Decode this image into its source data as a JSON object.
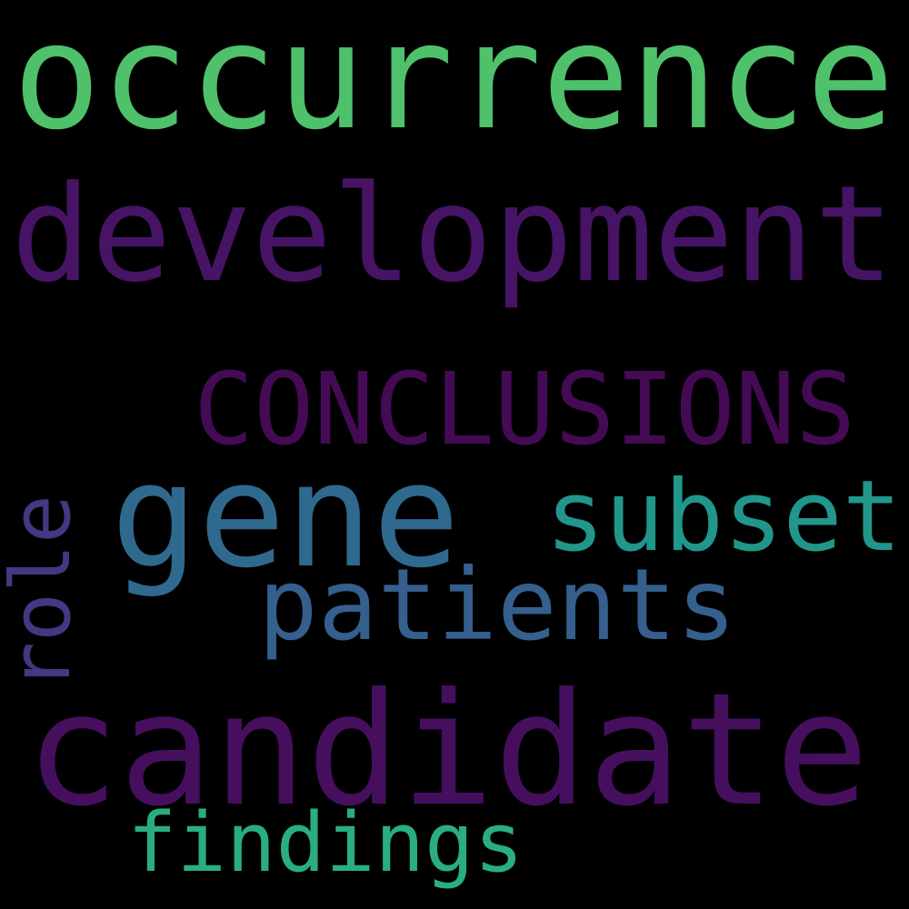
{
  "words": [
    "occurrence",
    "development",
    "CONCLUSIONS",
    "gene",
    "subset",
    "patients",
    "role",
    "candidate",
    "findings"
  ]
}
